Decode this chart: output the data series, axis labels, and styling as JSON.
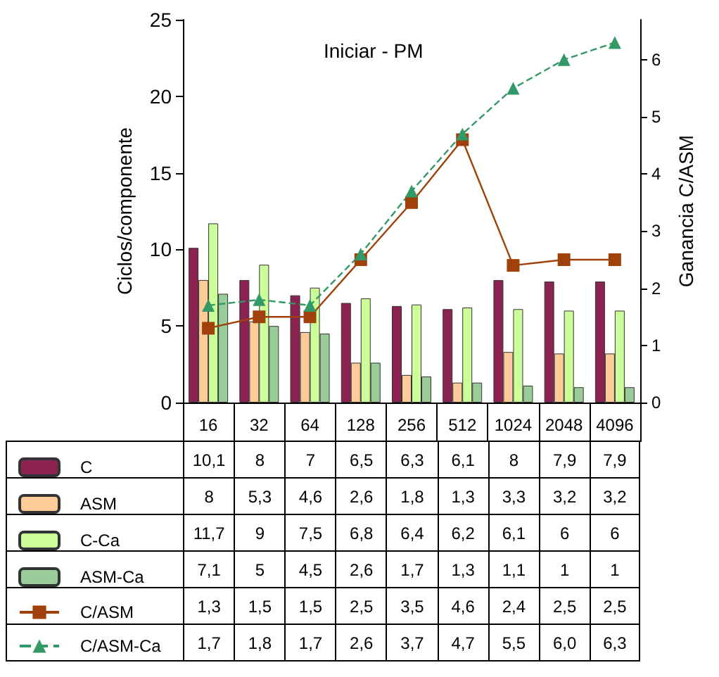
{
  "chart_data": {
    "type": "bar",
    "title": "Iniciar - PM",
    "ylabel": "Ciclos/componente",
    "y2label": "Ganancia C/ASM",
    "categories": [
      "16",
      "32",
      "64",
      "128",
      "256",
      "512",
      "1024",
      "2048",
      "4096"
    ],
    "series": [
      {
        "name": "C",
        "color": "#8b2252",
        "values": [
          10.1,
          8,
          7,
          6.5,
          6.3,
          6.1,
          8,
          7.9,
          7.9
        ],
        "value_labels": [
          "10,1",
          "8",
          "7",
          "6,5",
          "6,3",
          "6,1",
          "8",
          "7,9",
          "7,9"
        ]
      },
      {
        "name": "ASM",
        "color": "#ffcc99",
        "values": [
          8,
          5.3,
          4.6,
          2.6,
          1.8,
          1.3,
          3.3,
          3.2,
          3.2
        ],
        "value_labels": [
          "8",
          "5,3",
          "4,6",
          "2,6",
          "1,8",
          "1,3",
          "3,3",
          "3,2",
          "3,2"
        ]
      },
      {
        "name": "C-Ca",
        "color": "#ccff99",
        "values": [
          11.7,
          9,
          7.5,
          6.8,
          6.4,
          6.2,
          6.1,
          6,
          6
        ],
        "value_labels": [
          "11,7",
          "9",
          "7,5",
          "6,8",
          "6,4",
          "6,2",
          "6,1",
          "6",
          "6"
        ]
      },
      {
        "name": "ASM-Ca",
        "color": "#99cc99",
        "values": [
          7.1,
          5,
          4.5,
          2.6,
          1.7,
          1.3,
          1.1,
          1,
          1
        ],
        "value_labels": [
          "7,1",
          "5",
          "4,5",
          "2,6",
          "1,7",
          "1,3",
          "1,1",
          "1",
          "1"
        ]
      },
      {
        "name": "C/ASM",
        "type": "line",
        "axis": "y2",
        "color": "#a0400a",
        "marker": "square",
        "line_style": "solid",
        "values": [
          1.3,
          1.5,
          1.5,
          2.5,
          3.5,
          4.6,
          2.4,
          2.5,
          2.5
        ],
        "value_labels": [
          "1,3",
          "1,5",
          "1,5",
          "2,5",
          "3,5",
          "4,6",
          "2,4",
          "2,5",
          "2,5"
        ]
      },
      {
        "name": "C/ASM-Ca",
        "type": "line",
        "axis": "y2",
        "color": "#339966",
        "marker": "triangle",
        "line_style": "dashed",
        "values": [
          1.7,
          1.8,
          1.7,
          2.6,
          3.7,
          4.7,
          5.5,
          6.0,
          6.3
        ],
        "value_labels": [
          "1,7",
          "1,8",
          "1,7",
          "2,6",
          "3,7",
          "4,7",
          "5,5",
          "6,0",
          "6,3"
        ]
      }
    ],
    "ylim": [
      0,
      25
    ],
    "yticks": [
      0,
      5,
      10,
      15,
      20,
      25
    ],
    "y2lim": [
      0,
      6.7
    ],
    "y2ticks": [
      0,
      1,
      2,
      3,
      4,
      5,
      6
    ],
    "grid": false,
    "legend": "bottom"
  }
}
